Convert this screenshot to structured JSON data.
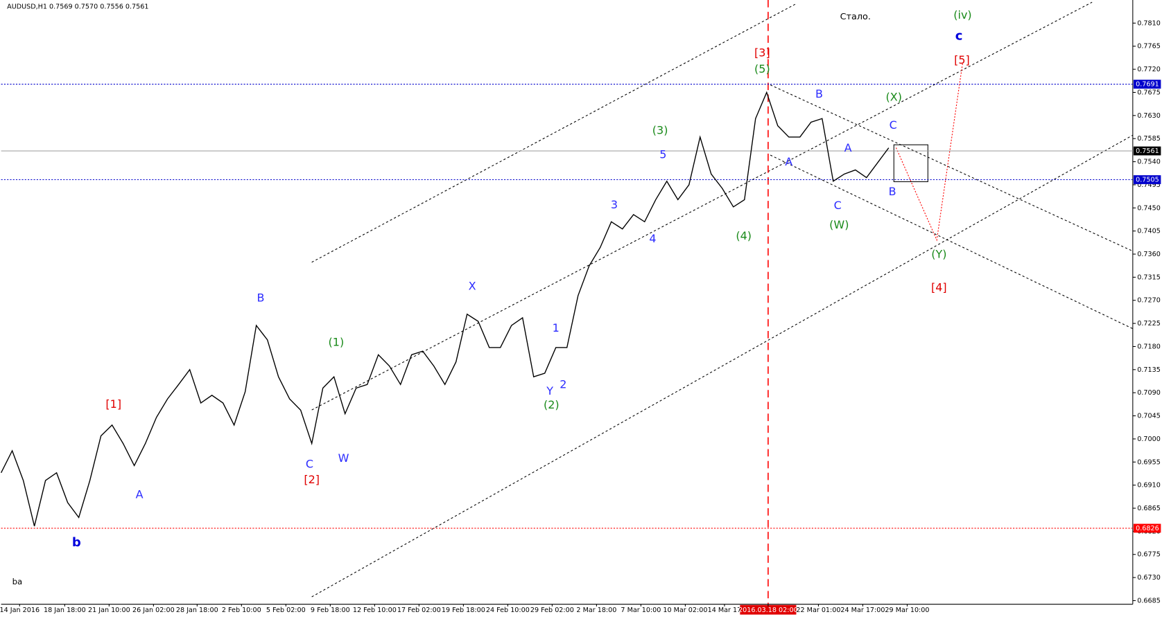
{
  "chart_data": {
    "type": "line",
    "title": "AUDUSD,H1  0.7569 0.7570 0.7556 0.7561",
    "color": "#000000",
    "values": [
      0.6934,
      0.6977,
      0.6919,
      0.683,
      0.6919,
      0.6934,
      0.6876,
      0.6847,
      0.6919,
      0.7006,
      0.7027,
      0.6991,
      0.6948,
      0.6991,
      0.7042,
      0.7078,
      0.7106,
      0.7135,
      0.707,
      0.7085,
      0.707,
      0.7027,
      0.7092,
      0.7221,
      0.7193,
      0.7121,
      0.7078,
      0.7056,
      0.6991,
      0.7099,
      0.7121,
      0.7049,
      0.7099,
      0.7106,
      0.7164,
      0.7142,
      0.7106,
      0.7164,
      0.7171,
      0.7142,
      0.7106,
      0.715,
      0.7243,
      0.7229,
      0.7178,
      0.7178,
      0.7221,
      0.7236,
      0.7121,
      0.7128,
      0.7178,
      0.7178,
      0.7279,
      0.7337,
      0.7373,
      0.7423,
      0.7409,
      0.7437,
      0.7423,
      0.7466,
      0.7502,
      0.7466,
      0.7495,
      0.7588,
      0.7516,
      0.7488,
      0.7452,
      0.7466,
      0.7624,
      0.7675,
      0.761,
      0.7588,
      0.7588,
      0.7617,
      0.7624,
      0.7502,
      0.7516,
      0.7524,
      0.7509,
      0.7538,
      0.7567
    ],
    "ylim": [
      0.6678,
      0.7855
    ],
    "yticks": [
      {
        "value": 0.781,
        "label": "0.7810"
      },
      {
        "value": 0.7765,
        "label": "0.7765"
      },
      {
        "value": 0.772,
        "label": "0.7720"
      },
      {
        "value": 0.7675,
        "label": "0.7675"
      },
      {
        "value": 0.763,
        "label": "0.7630"
      },
      {
        "value": 0.7585,
        "label": "0.7585"
      },
      {
        "value": 0.754,
        "label": "0.7540"
      },
      {
        "value": 0.7495,
        "label": "0.7495"
      },
      {
        "value": 0.745,
        "label": "0.7450"
      },
      {
        "value": 0.7405,
        "label": "0.7405"
      },
      {
        "value": 0.736,
        "label": "0.7360"
      },
      {
        "value": 0.7315,
        "label": "0.7315"
      },
      {
        "value": 0.727,
        "label": "0.7270"
      },
      {
        "value": 0.7225,
        "label": "0.7225"
      },
      {
        "value": 0.718,
        "label": "0.7180"
      },
      {
        "value": 0.7135,
        "label": "0.7135"
      },
      {
        "value": 0.709,
        "label": "0.7090"
      },
      {
        "value": 0.7045,
        "label": "0.7045"
      },
      {
        "value": 0.7,
        "label": "0.7000"
      },
      {
        "value": 0.6955,
        "label": "0.6955"
      },
      {
        "value": 0.691,
        "label": "0.6910"
      },
      {
        "value": 0.6865,
        "label": "0.6865"
      },
      {
        "value": 0.682,
        "label": "0.6820"
      },
      {
        "value": 0.6775,
        "label": "0.6775"
      },
      {
        "value": 0.673,
        "label": "0.6730"
      },
      {
        "value": 0.6685,
        "label": "0.6685"
      }
    ],
    "time_labels": [
      "14 Jan 2016",
      "18 Jan 18:00",
      "21 Jan 10:00",
      "26 Jan 02:00",
      "28 Jan 18:00",
      "2 Feb 10:00",
      "5 Feb 02:00",
      "9 Feb 18:00",
      "12 Feb 10:00",
      "17 Feb 02:00",
      "19 Feb 18:00",
      "24 Feb 10:00",
      "29 Feb 02:00",
      "2 Mar 18:00",
      "7 Mar 10:00",
      "10 Mar 02:00",
      "14 Mar 17",
      "2016.03.18 02:00",
      "22 Mar 01:00",
      "24 Mar 17:00",
      "29 Mar 10:00"
    ],
    "hlines": [
      {
        "value": 0.7691,
        "color": "#0000cc",
        "style": "dotted"
      },
      {
        "value": 0.7561,
        "color": "#999999",
        "style": "solid"
      },
      {
        "value": 0.7505,
        "color": "#0000cc",
        "style": "dotted"
      },
      {
        "value": 0.6826,
        "color": "#ff0000",
        "style": "dotted"
      }
    ],
    "annotations": [
      {
        "text": "[3]",
        "color": "#e00000"
      },
      {
        "text": "(5)",
        "color": "#1a8a1a"
      },
      {
        "text": "(3)",
        "color": "#1a8a1a"
      },
      {
        "text": "5",
        "color": "#2b2bff"
      },
      {
        "text": "3",
        "color": "#2b2bff"
      },
      {
        "text": "4",
        "color": "#2b2bff"
      },
      {
        "text": "(4)",
        "color": "#1a8a1a"
      },
      {
        "text": "X",
        "color": "#2b2bff"
      },
      {
        "text": "B",
        "color": "#2b2bff"
      },
      {
        "text": "(1)",
        "color": "#1a8a1a"
      },
      {
        "text": "1",
        "color": "#2b2bff"
      },
      {
        "text": "Y",
        "color": "#2b2bff"
      },
      {
        "text": "2",
        "color": "#2b2bff"
      },
      {
        "text": "(2)",
        "color": "#1a8a1a"
      },
      {
        "text": "[1]",
        "color": "#e00000"
      },
      {
        "text": "A",
        "color": "#2b2bff"
      },
      {
        "text": "C",
        "color": "#2b2bff"
      },
      {
        "text": "[2]",
        "color": "#e00000"
      },
      {
        "text": "W",
        "color": "#2b2bff"
      },
      {
        "text": "b",
        "color": "#0000dd"
      },
      {
        "text": "B",
        "color": "#2b2bff"
      },
      {
        "text": "(X)",
        "color": "#1a8a1a"
      },
      {
        "text": "C",
        "color": "#2b2bff"
      },
      {
        "text": "A",
        "color": "#2b2bff"
      },
      {
        "text": "A",
        "color": "#2b2bff"
      },
      {
        "text": "C",
        "color": "#2b2bff"
      },
      {
        "text": "(W)",
        "color": "#1a8a1a"
      },
      {
        "text": "B",
        "color": "#2b2bff"
      },
      {
        "text": "(Y)",
        "color": "#1a8a1a"
      },
      {
        "text": "[4]",
        "color": "#e00000"
      },
      {
        "text": "[5]",
        "color": "#e00000"
      },
      {
        "text": "c",
        "color": "#0000dd"
      },
      {
        "text": "(iv)",
        "color": "#1a8a1a"
      }
    ],
    "notes": [
      "Стало.",
      "ba"
    ]
  }
}
